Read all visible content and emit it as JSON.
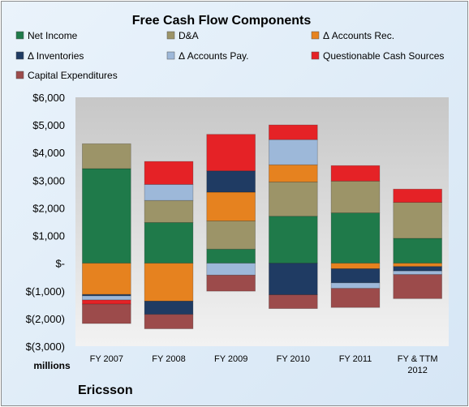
{
  "chart_data": {
    "type": "bar",
    "stacked": true,
    "title": "Free Cash Flow Components",
    "unit_label": "millions",
    "company": "Ericsson",
    "ylim": [
      -3000,
      6000
    ],
    "yticks": [
      6000,
      5000,
      4000,
      3000,
      2000,
      1000,
      0,
      -1000,
      -2000,
      -3000
    ],
    "ytick_labels": [
      "$6,000",
      "$5,000",
      "$4,000",
      "$3,000",
      "$2,000",
      "$1,000",
      "$-",
      "$(1,000)",
      "$(2,000)",
      "$(3,000)"
    ],
    "categories": [
      [
        "FY 2007"
      ],
      [
        "FY 2008"
      ],
      [
        "FY 2009"
      ],
      [
        "FY 2010"
      ],
      [
        "FY 2011"
      ],
      [
        "FY & TTM",
        "2012"
      ]
    ],
    "legend_position": "top",
    "grid": false,
    "series": [
      {
        "name": "Net Income",
        "color": "#1f7a4a",
        "values": [
          3420,
          1470,
          510,
          1700,
          1820,
          900
        ]
      },
      {
        "name": "D&A",
        "color": "#9c9468",
        "values": [
          900,
          800,
          1020,
          1240,
          1150,
          1300
        ]
      },
      {
        "name": "Δ Accounts Rec.",
        "color": "#e6821f",
        "values": [
          -1130,
          -1370,
          1040,
          620,
          -200,
          -120
        ]
      },
      {
        "name": "Δ Inventories",
        "color": "#1f3b63",
        "values": [
          -50,
          -480,
          770,
          -1140,
          -510,
          -160
        ]
      },
      {
        "name": "Δ Accounts Pay.",
        "color": "#9db8d9",
        "values": [
          -150,
          580,
          -430,
          910,
          -200,
          -130
        ]
      },
      {
        "name": "Questionable Cash Sources",
        "color": "#e52226",
        "values": [
          -150,
          830,
          1320,
          530,
          560,
          480
        ]
      },
      {
        "name": "Capital Expenditures",
        "color": "#9c4b4b",
        "values": [
          -700,
          -520,
          -580,
          -500,
          -690,
          -870
        ]
      }
    ]
  }
}
